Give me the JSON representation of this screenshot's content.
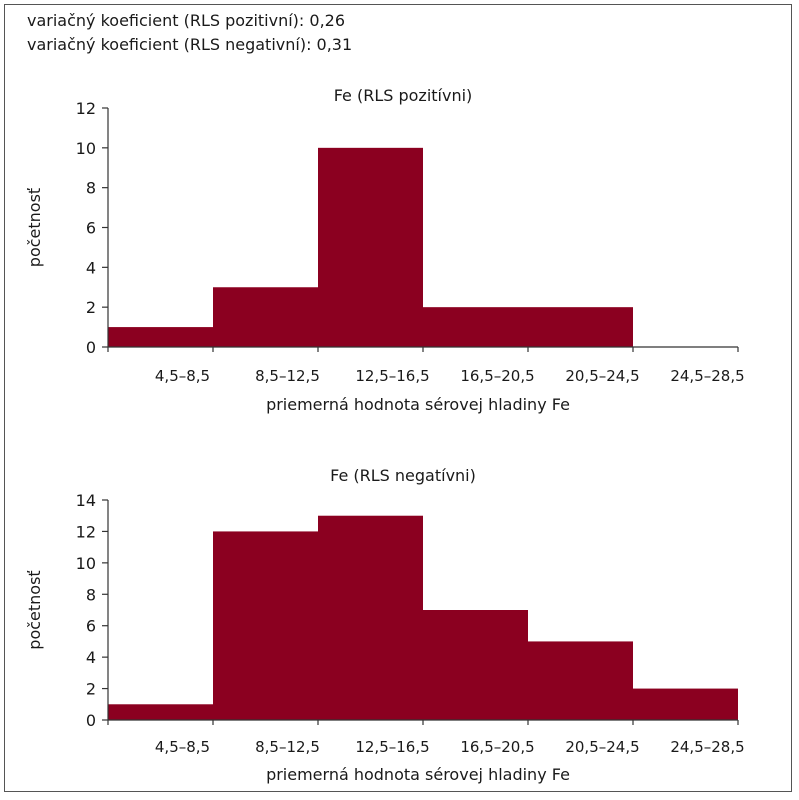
{
  "header": {
    "stat_positive": "variačný koeficient (RLS pozitivní): 0,26",
    "stat_negative": "variačný koeficient (RLS negativní): 0,31"
  },
  "colors": {
    "bar": "#8B0020",
    "axis": "#333333",
    "text": "#1a1a1a"
  },
  "chart_data": [
    {
      "type": "bar",
      "title": "Fe (RLS pozitívni)",
      "xlabel": "priemerná hodnota sérovej hladiny Fe",
      "ylabel": "početnosť",
      "categories": [
        "4,5–8,5",
        "8,5–12,5",
        "12,5–16,5",
        "16,5–20,5",
        "20,5–24,5",
        "24,5–28,5"
      ],
      "values": [
        1,
        3,
        10,
        2,
        2,
        0
      ],
      "ylim": [
        0,
        12
      ],
      "yticks": [
        0,
        2,
        4,
        6,
        8,
        10,
        12
      ],
      "grid": false
    },
    {
      "type": "bar",
      "title": "Fe (RLS negatívni)",
      "xlabel": "priemerná hodnota sérovej hladiny Fe",
      "ylabel": "početnosť",
      "categories": [
        "4,5–8,5",
        "8,5–12,5",
        "12,5–16,5",
        "16,5–20,5",
        "20,5–24,5",
        "24,5–28,5"
      ],
      "values": [
        1,
        12,
        13,
        7,
        5,
        2
      ],
      "ylim": [
        0,
        14
      ],
      "yticks": [
        0,
        2,
        4,
        6,
        8,
        10,
        12,
        14
      ],
      "grid": false
    }
  ]
}
